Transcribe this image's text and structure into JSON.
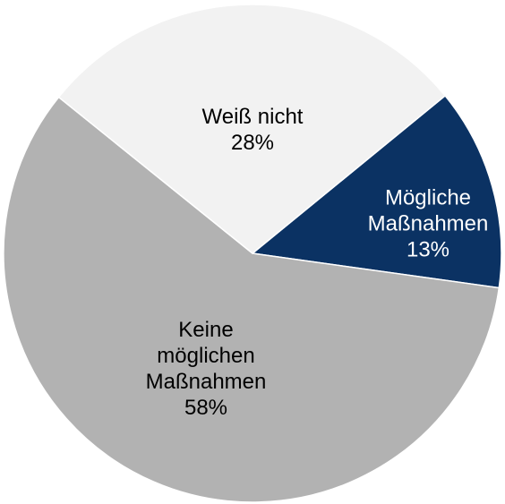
{
  "chart_data": {
    "type": "pie",
    "categories": [
      "Mögliche Maßnahmen",
      "Keine möglichen Maßnahmen",
      "Weiß nicht"
    ],
    "values": [
      13,
      58,
      28
    ],
    "value_labels": [
      "13%",
      "58%",
      "28%"
    ],
    "colors": [
      "#0b3263",
      "#b2b2b2",
      "#f2f2f2"
    ],
    "label_colors": [
      "#ffffff",
      "#000000",
      "#000000"
    ]
  }
}
